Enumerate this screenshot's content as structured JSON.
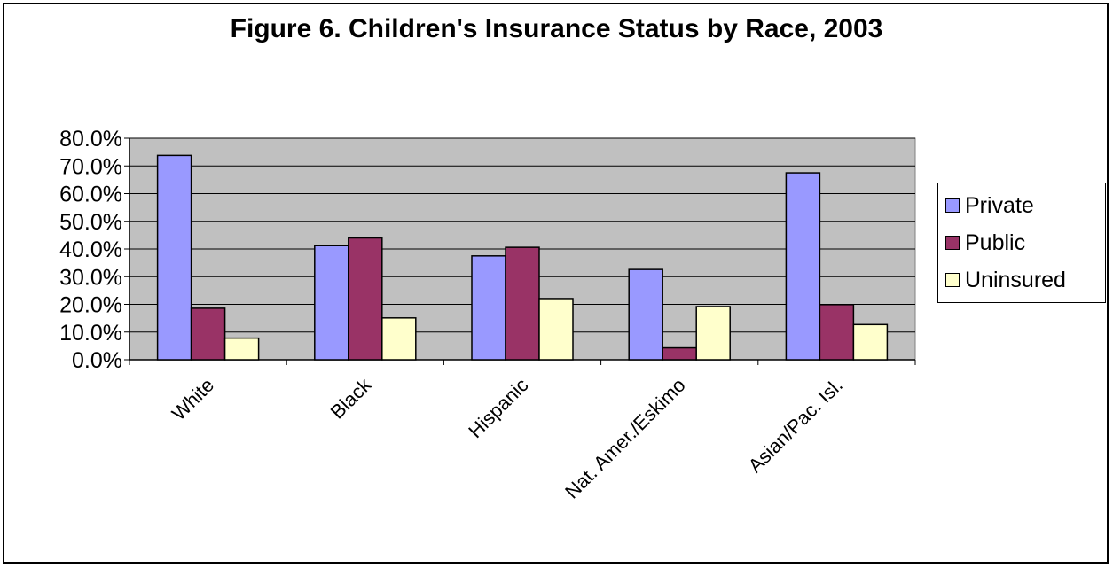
{
  "chart_data": {
    "type": "bar",
    "title": "Figure 6. Children's Insurance Status by Race, 2003",
    "xlabel": "",
    "ylabel": "",
    "categories": [
      "White",
      "Black",
      "Hispanic",
      "Nat. Amer./Eskimo",
      "Asian/Pac. Isl."
    ],
    "series": [
      {
        "name": "Private",
        "color": "#9999ff",
        "values": [
          73.8,
          41.2,
          37.5,
          32.6,
          67.5
        ]
      },
      {
        "name": "Public",
        "color": "#993366",
        "values": [
          18.6,
          44.0,
          40.6,
          4.3,
          19.9
        ]
      },
      {
        "name": "Uninsured",
        "color": "#ffffcc",
        "values": [
          7.8,
          15.1,
          22.1,
          19.2,
          12.7
        ]
      }
    ],
    "yticks": [
      "0.0%",
      "10.0%",
      "20.0%",
      "30.0%",
      "40.0%",
      "50.0%",
      "60.0%",
      "70.0%",
      "80.0%"
    ],
    "ylim": [
      0,
      80
    ],
    "grid": true,
    "legend_position": "right",
    "plot_background": "#c0c0c0"
  }
}
